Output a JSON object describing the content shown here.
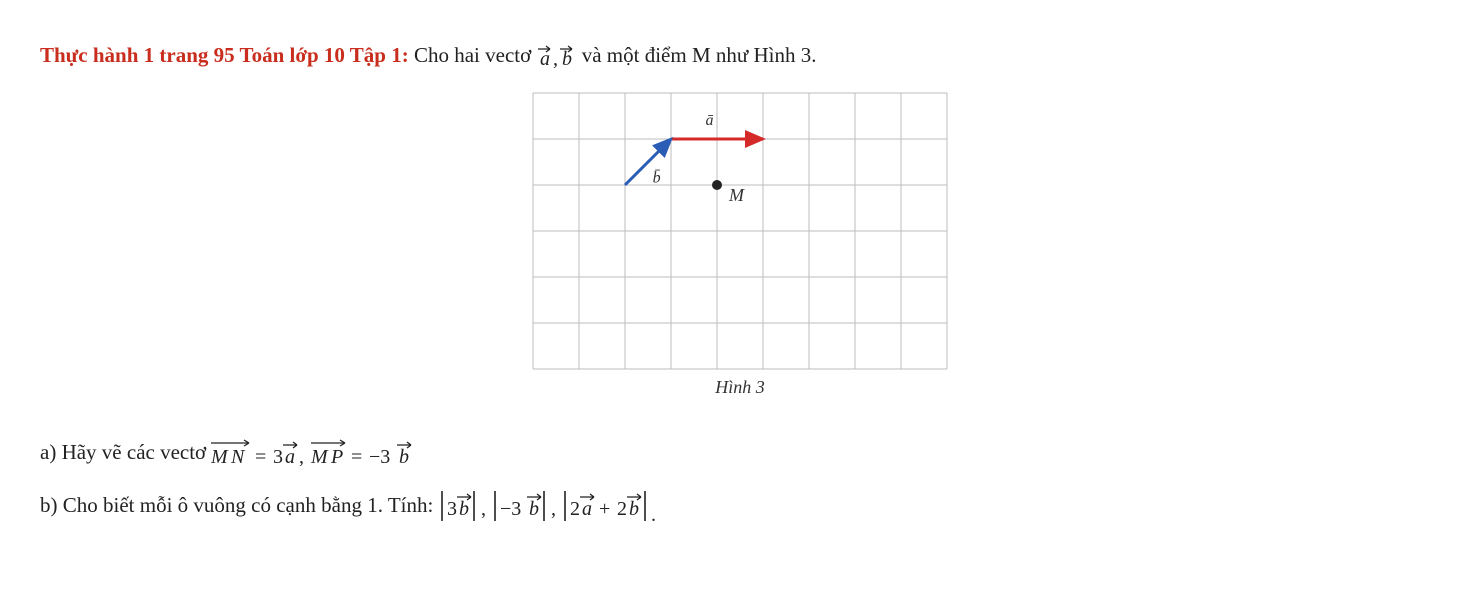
{
  "heading": {
    "strong": "Thực hành 1 trang 95 Toán lớp 10 Tập 1:",
    "rest_before": " Cho hai vectơ ",
    "rest_after": " và một điểm M như Hình 3.",
    "strong_color": "#c82d1d"
  },
  "figure": {
    "caption": "Hình 3",
    "grid": {
      "cols": 9,
      "rows": 6,
      "cell": 46,
      "line_color": "#bdbdbd",
      "line_width": 1
    },
    "point_M": {
      "col": 4,
      "row": 2,
      "label": "M",
      "dot_color": "#232323",
      "dot_radius": 5,
      "label_dx": 12,
      "label_dy": 4,
      "label_fontsize": 18
    },
    "vector_a": {
      "from_col": 3,
      "from_row": 1,
      "to_col": 5,
      "to_row": 1,
      "color": "#d52a2a",
      "width": 3,
      "label": "ā",
      "label_col": 3.75,
      "label_row": 0.7,
      "label_fontsize": 16
    },
    "vector_b": {
      "from_col": 2,
      "from_row": 2,
      "to_col": 3,
      "to_row": 1,
      "color": "#2c5db6",
      "width": 3,
      "label": "b̄",
      "label_col": 2.6,
      "label_row": 1.95,
      "label_fontsize": 16
    }
  },
  "question_a": {
    "prefix": "a) Hãy vẽ các vectơ ",
    "formula_latex": "MN = 3a, MP = -3b"
  },
  "question_b": {
    "prefix": "b) Cho biết mỗi ô vuông có cạnh bằng 1. Tính: ",
    "formula_latex": "|3b|, |-3b|, |2a + 2b|"
  }
}
